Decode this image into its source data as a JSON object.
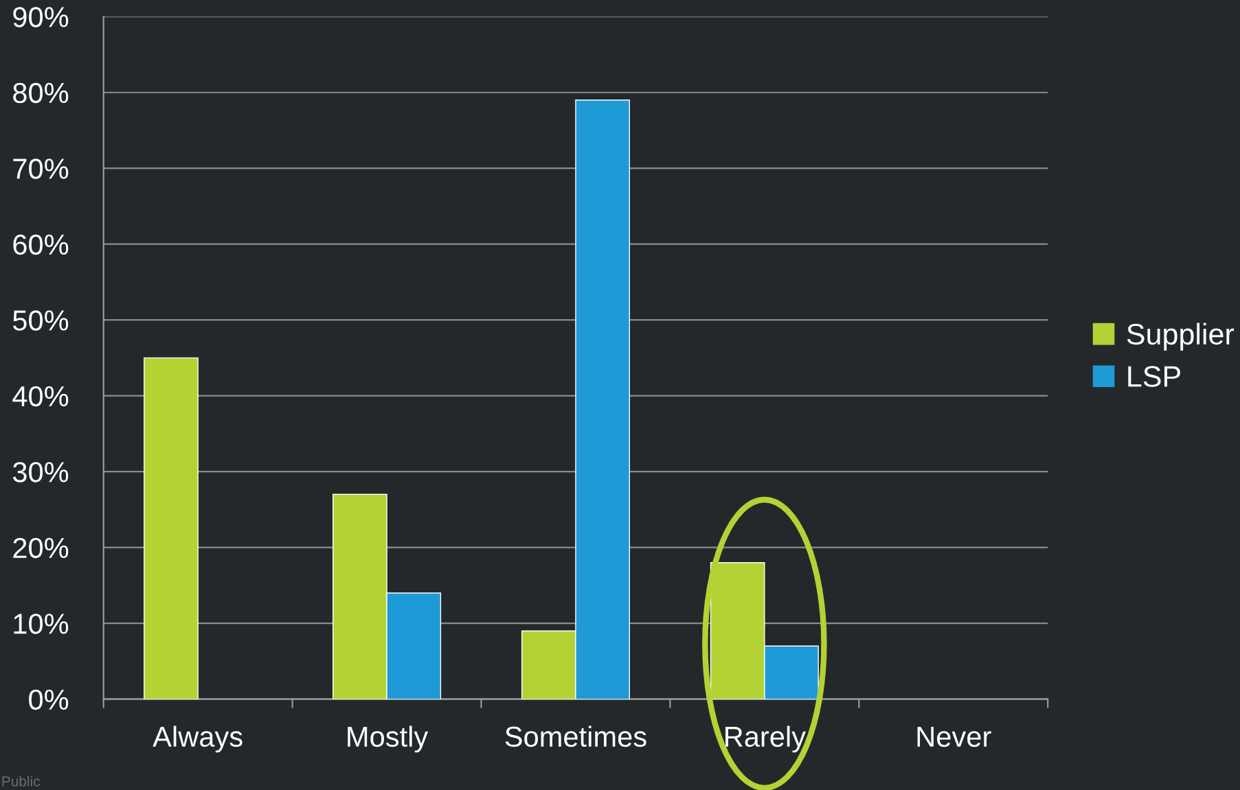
{
  "chart_data": {
    "type": "bar",
    "categories": [
      "Always",
      "Mostly",
      "Sometimes",
      "Rarely",
      "Never"
    ],
    "series": [
      {
        "name": "Supplier",
        "color": "#b3d335",
        "values": [
          45,
          27,
          9,
          18,
          null
        ]
      },
      {
        "name": "LSP",
        "color": "#1e9ad6",
        "values": [
          null,
          14,
          79,
          7,
          null
        ]
      }
    ],
    "ylim": [
      0,
      90
    ],
    "yticks": [
      {
        "value": 0,
        "label": "0%"
      },
      {
        "value": 10,
        "label": "10%"
      },
      {
        "value": 20,
        "label": "20%"
      },
      {
        "value": 30,
        "label": "30%"
      },
      {
        "value": 40,
        "label": "40%"
      },
      {
        "value": 50,
        "label": "50%"
      },
      {
        "value": 60,
        "label": "60%"
      },
      {
        "value": 70,
        "label": "70%"
      },
      {
        "value": 80,
        "label": "80%"
      },
      {
        "value": 90,
        "label": "90%"
      }
    ],
    "grid": "y",
    "legend": "right",
    "annotations": [
      "Public"
    ]
  }
}
